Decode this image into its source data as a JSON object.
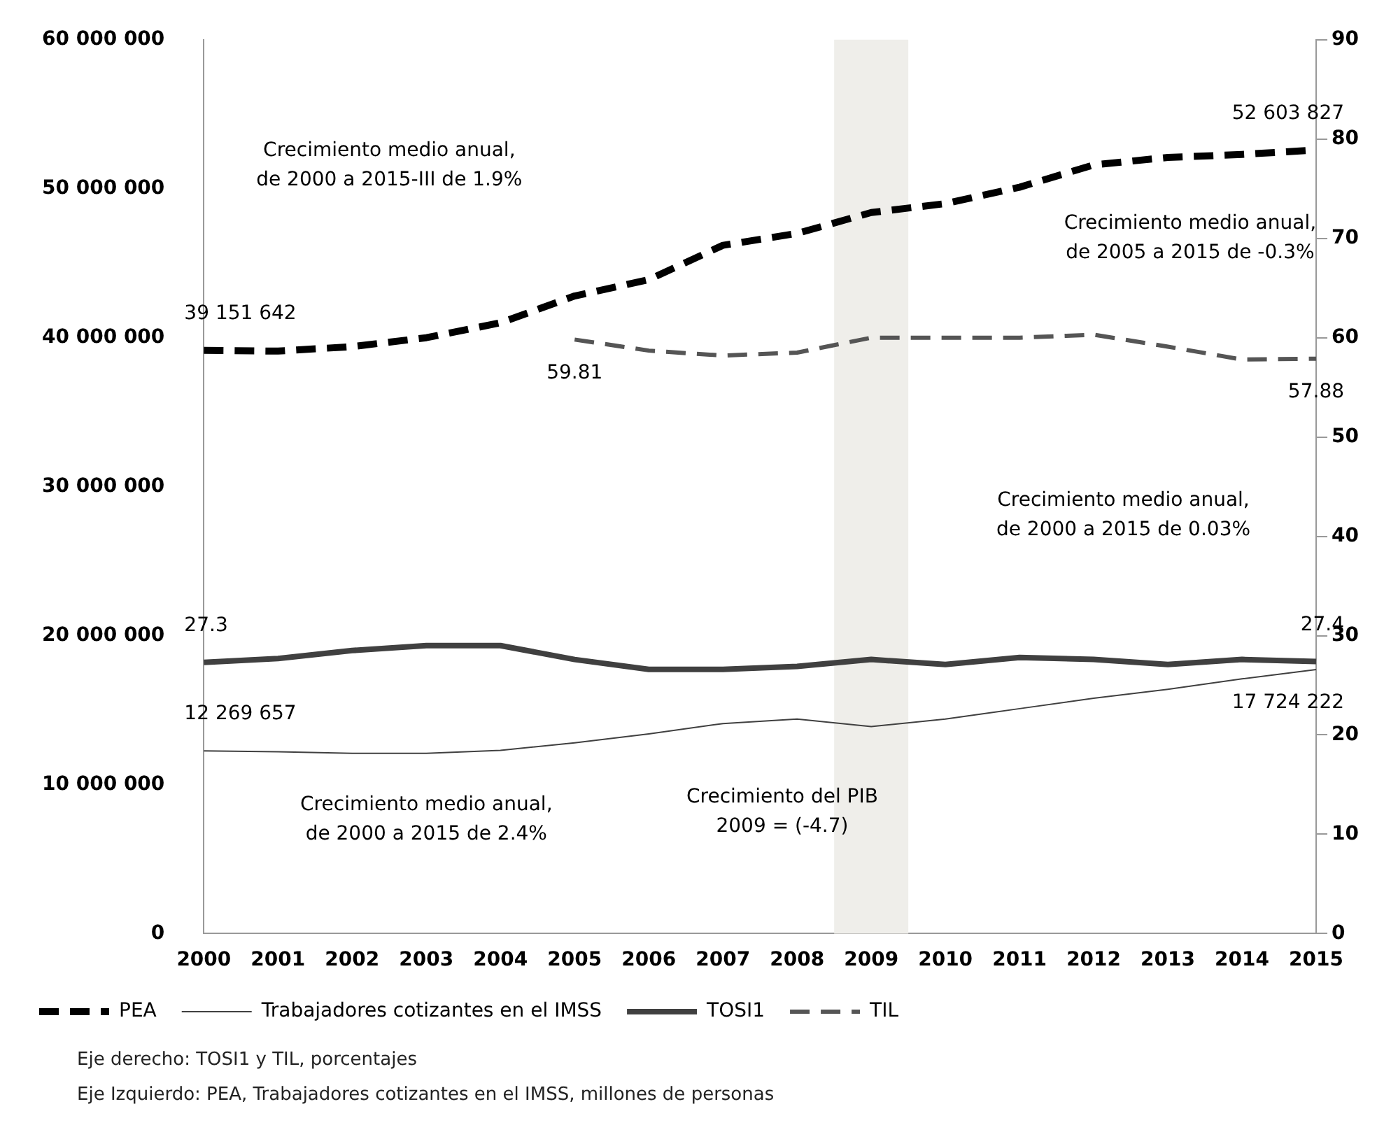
{
  "chart_data": {
    "type": "line",
    "categories": [
      "2000",
      "2001",
      "2002",
      "2003",
      "2004",
      "2005",
      "2006",
      "2007",
      "2008",
      "2009",
      "2010",
      "2011",
      "2012",
      "2013",
      "2014",
      "2015"
    ],
    "series": [
      {
        "name": "PEA",
        "color": "#000000",
        "line_style": "dashed",
        "values": [
          39151642,
          39100000,
          39400000,
          40000000,
          41000000,
          42800000,
          43900000,
          46200000,
          47000000,
          48400000,
          49000000,
          50100000,
          51600000,
          52100000,
          52300000,
          52603827
        ],
        "value_labels": [
          "39 151 642",
          null,
          null,
          null,
          null,
          null,
          null,
          null,
          null,
          null,
          null,
          null,
          null,
          null,
          null,
          "52 603 827"
        ]
      },
      {
        "name": "Trabajadores cotizantes en el IMSS",
        "color": "#404040",
        "line_style": "solid",
        "values": [
          12269657,
          12200000,
          12100000,
          12100000,
          12300000,
          12800000,
          13400000,
          14100000,
          14400000,
          13900000,
          14400000,
          15100000,
          15800000,
          16400000,
          17100000,
          17724222
        ],
        "value_labels": [
          "12 269 657",
          null,
          null,
          null,
          null,
          null,
          null,
          null,
          null,
          null,
          null,
          null,
          null,
          null,
          null,
          "17 724 222"
        ]
      },
      {
        "name": "TOSI1",
        "color": "#404040",
        "line_style": "solid",
        "axis": "y2",
        "values": [
          27.3,
          27.7,
          28.5,
          29.0,
          29.0,
          27.6,
          26.6,
          26.6,
          26.9,
          27.6,
          27.1,
          27.8,
          27.6,
          27.1,
          27.6,
          27.4
        ],
        "value_labels": [
          "27.3",
          null,
          null,
          null,
          null,
          null,
          null,
          null,
          null,
          null,
          null,
          null,
          null,
          null,
          null,
          "27.4"
        ]
      },
      {
        "name": "TIL",
        "color": "#555555",
        "line_style": "dashed",
        "axis": "y2",
        "values": [
          null,
          null,
          null,
          null,
          null,
          59.81,
          58.7,
          58.2,
          58.5,
          60.0,
          60.0,
          60.0,
          60.3,
          59.1,
          57.8,
          57.88
        ],
        "value_labels": [
          null,
          null,
          null,
          null,
          null,
          "59.81",
          null,
          null,
          null,
          null,
          null,
          null,
          null,
          null,
          null,
          "57.88"
        ]
      }
    ],
    "ylim": [
      0,
      60000000
    ],
    "yticks": [
      {
        "value": 0,
        "label": "0"
      },
      {
        "value": 10000000,
        "label": "10 000 000"
      },
      {
        "value": 20000000,
        "label": "20 000 000"
      },
      {
        "value": 30000000,
        "label": "30 000 000"
      },
      {
        "value": 40000000,
        "label": "40 000 000"
      },
      {
        "value": 50000000,
        "label": "50 000 000"
      },
      {
        "value": 60000000,
        "label": "60 000 000"
      }
    ],
    "y2lim": [
      0,
      90
    ],
    "y2ticks": [
      0,
      10,
      20,
      30,
      40,
      50,
      60,
      70,
      80,
      90
    ],
    "bands": [
      {
        "axis": "x",
        "from": "2009",
        "to": "2009",
        "color": "#efeeea"
      }
    ],
    "grid": false,
    "legend": "bottom",
    "marker": "none",
    "annotations": [
      "Crecimiento medio anual, de 2000 a 2015-III de 1.9%",
      "Crecimiento medio anual, de 2005 a 2015 de -0.3%",
      "Crecimiento medio anual, de 2000 a 2015 de 0.03%",
      "Crecimiento medio anual, de 2000 a 2015 de 2.4%",
      "Crecimiento del PIB 2009 = (-4.7)",
      "Eje derecho: TOSI1 y TIL, porcentajes",
      "Eje Izquierdo: PEA, Trabajadores cotizantes en el IMSS, millones de personas"
    ]
  }
}
